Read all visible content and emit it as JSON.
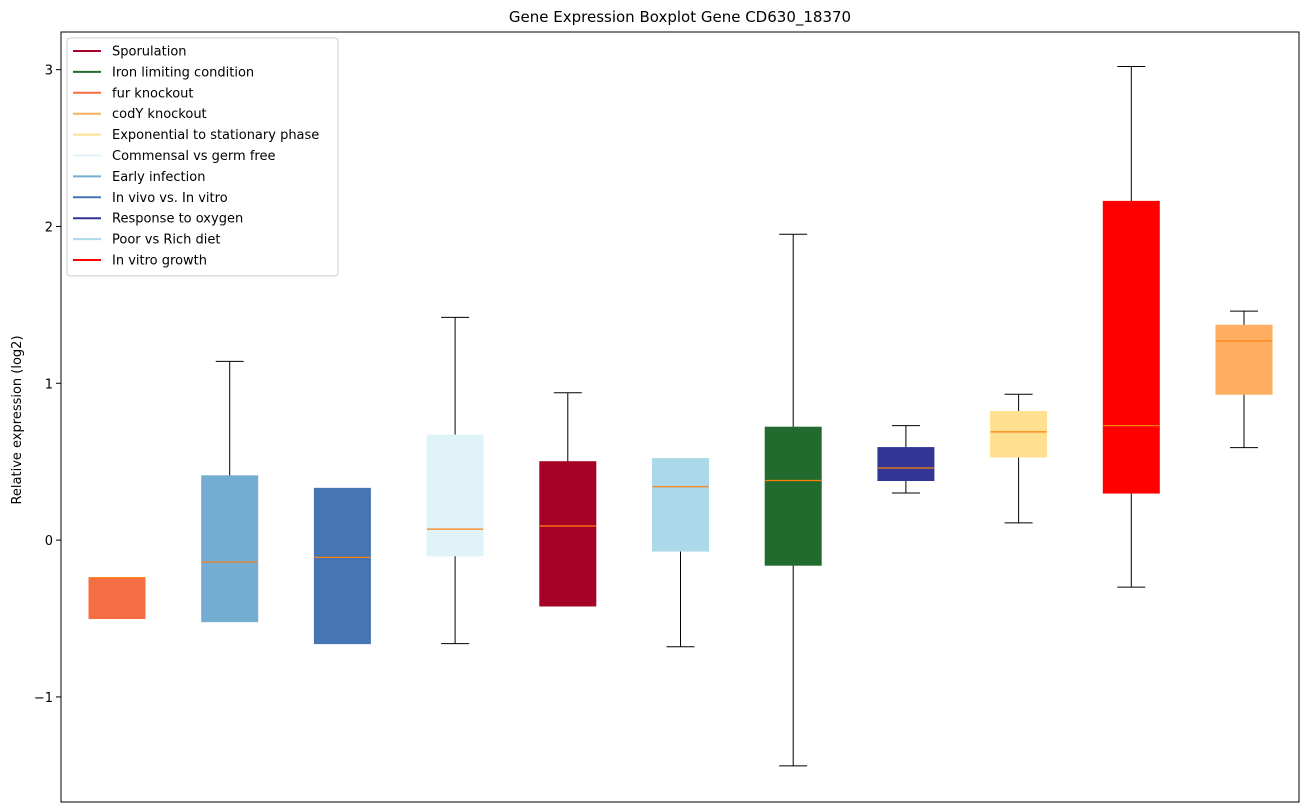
{
  "chart_data": {
    "type": "boxplot",
    "title": "Gene Expression Boxplot Gene CD630_18370",
    "xlabel": "",
    "ylabel": "Relative expression (log2)",
    "ylim": [
      -1.67,
      3.24
    ],
    "yticks": [
      -1,
      0,
      1,
      2,
      3
    ],
    "ytick_labels": [
      "−1",
      "0",
      "1",
      "2",
      "3"
    ],
    "grid": false,
    "legend_position": "upper-left",
    "legend": [
      {
        "label": "Sporulation",
        "color": "#a50026"
      },
      {
        "label": "Iron limiting condition",
        "color": "#226b2e"
      },
      {
        "label": "fur knockout",
        "color": "#f46d43"
      },
      {
        "label": "codY knockout",
        "color": "#fdae61"
      },
      {
        "label": "Exponential to stationary phase",
        "color": "#fee090"
      },
      {
        "label": "Commensal vs germ free",
        "color": "#e0f3f8"
      },
      {
        "label": "Early infection",
        "color": "#74add1"
      },
      {
        "label": "In vivo vs. In vitro",
        "color": "#4575b4"
      },
      {
        "label": "Response to oxygen",
        "color": "#313695"
      },
      {
        "label": "Poor vs Rich diet",
        "color": "#abd9e9"
      },
      {
        "label": "In vitro growth",
        "color": "#ff0000"
      }
    ],
    "boxes": [
      {
        "group": "fur knockout",
        "color": "#f46d43",
        "whisker_low": -0.5,
        "q1": -0.5,
        "median": -0.24,
        "q3": -0.24,
        "whisker_high": -0.24
      },
      {
        "group": "Early infection",
        "color": "#74add1",
        "whisker_low": -0.52,
        "q1": -0.52,
        "median": -0.14,
        "q3": 0.41,
        "whisker_high": 1.14
      },
      {
        "group": "In vivo vs. In vitro",
        "color": "#4575b4",
        "whisker_low": -0.66,
        "q1": -0.66,
        "median": -0.11,
        "q3": 0.33,
        "whisker_high": 0.33
      },
      {
        "group": "Commensal vs germ free",
        "color": "#e0f3f8",
        "whisker_low": -0.66,
        "q1": -0.1,
        "median": 0.07,
        "q3": 0.67,
        "whisker_high": 1.42
      },
      {
        "group": "Sporulation",
        "color": "#a50026",
        "whisker_low": -0.42,
        "q1": -0.42,
        "median": 0.09,
        "q3": 0.5,
        "whisker_high": 0.94
      },
      {
        "group": "Poor vs Rich diet",
        "color": "#abd9e9",
        "whisker_low": -0.68,
        "q1": -0.07,
        "median": 0.34,
        "q3": 0.52,
        "whisker_high": 0.52
      },
      {
        "group": "Iron limiting condition",
        "color": "#226b2e",
        "whisker_low": -1.44,
        "q1": -0.16,
        "median": 0.38,
        "q3": 0.72,
        "whisker_high": 1.95
      },
      {
        "group": "Response to oxygen",
        "color": "#313695",
        "whisker_low": 0.3,
        "q1": 0.38,
        "median": 0.46,
        "q3": 0.59,
        "whisker_high": 0.73
      },
      {
        "group": "Exponential to stationary phase",
        "color": "#fee090",
        "whisker_low": 0.11,
        "q1": 0.53,
        "median": 0.69,
        "q3": 0.82,
        "whisker_high": 0.93
      },
      {
        "group": "In vitro growth",
        "color": "#ff0000",
        "whisker_low": -0.3,
        "q1": 0.3,
        "median": 0.73,
        "q3": 2.16,
        "whisker_high": 3.02
      },
      {
        "group": "codY knockout",
        "color": "#fdae61",
        "whisker_low": 0.59,
        "q1": 0.93,
        "median": 1.27,
        "q3": 1.37,
        "whisker_high": 1.46
      }
    ],
    "median_color": "#ff7f0e"
  }
}
